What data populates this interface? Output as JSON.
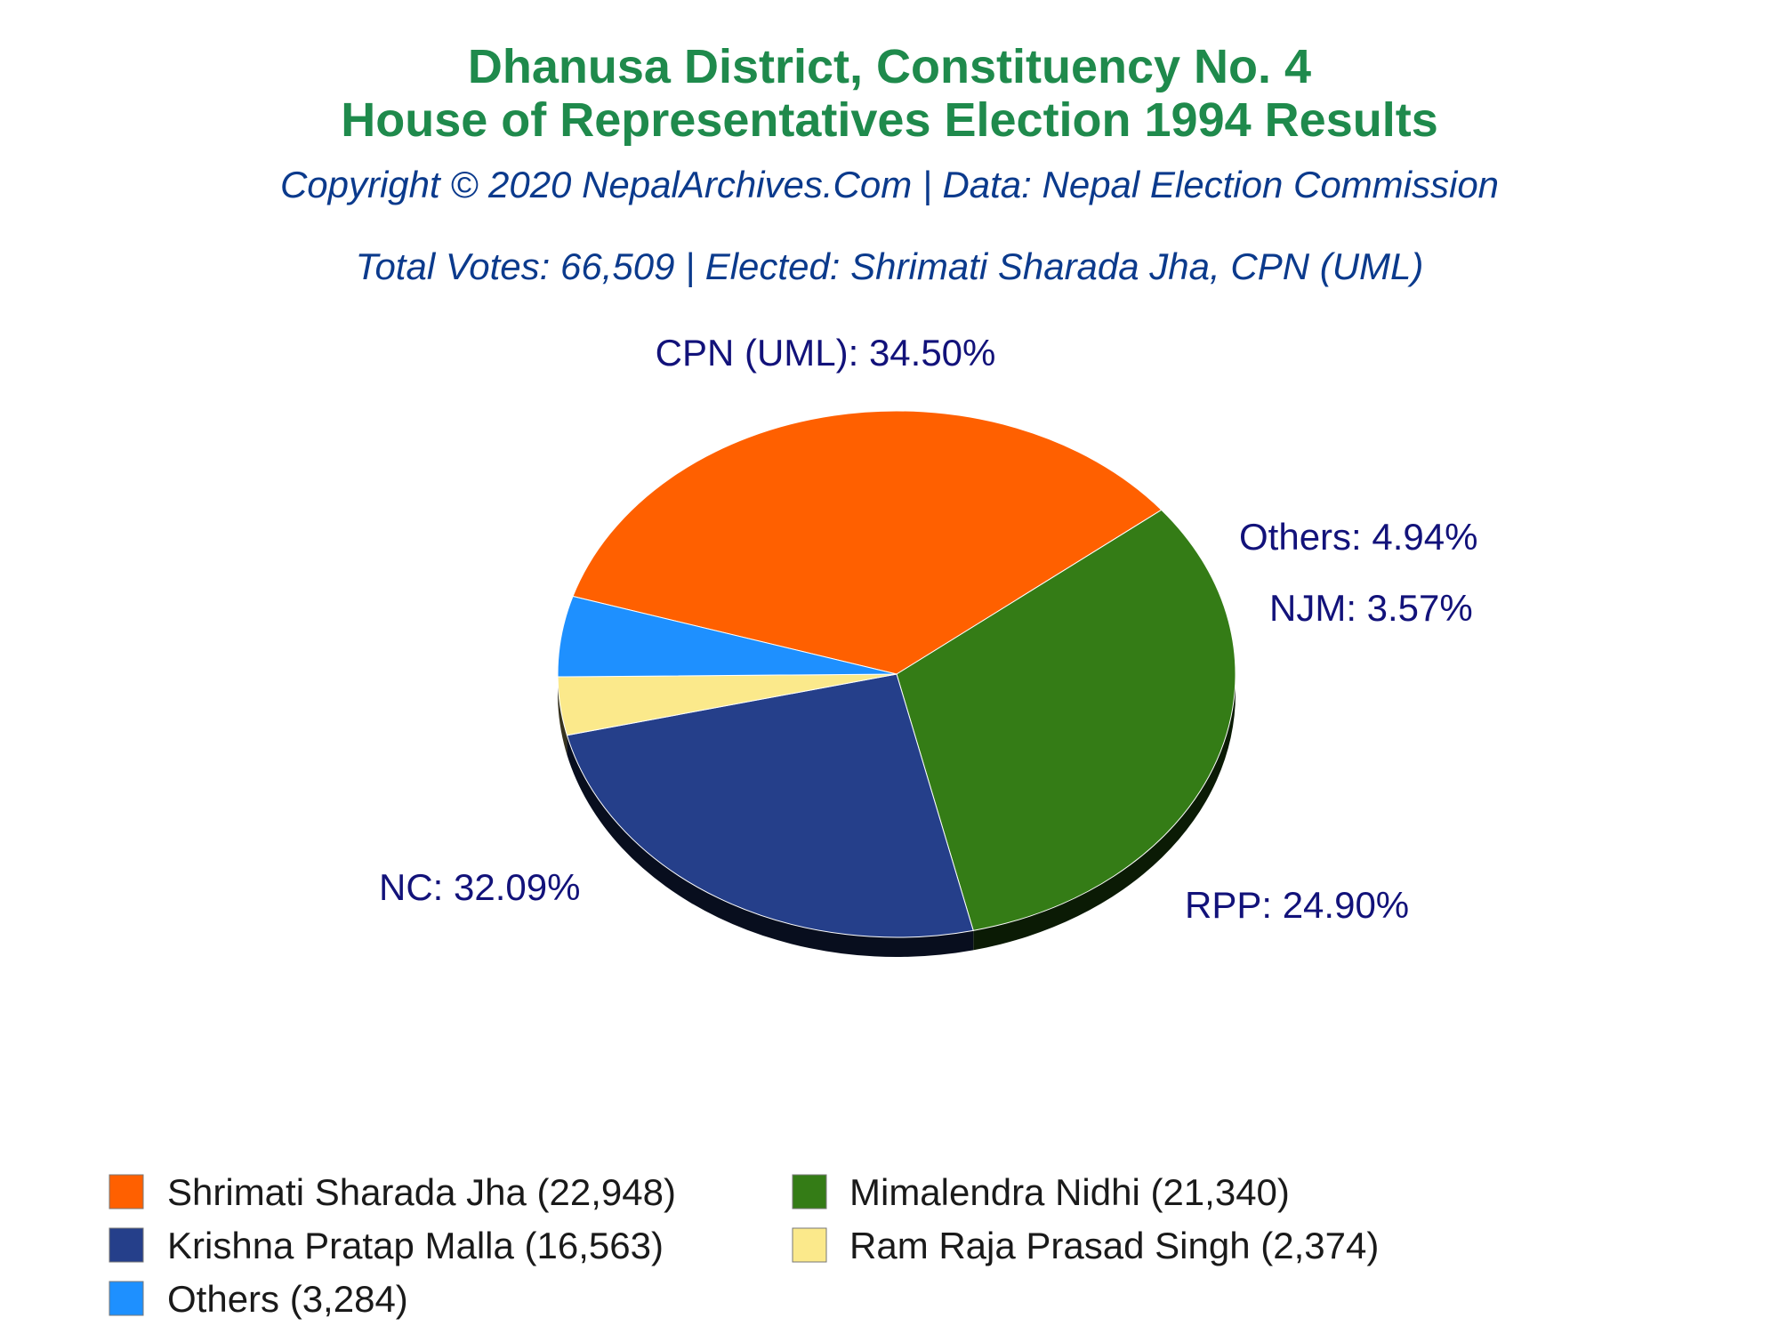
{
  "chart_data": {
    "type": "pie",
    "title": "Dhanusa District, Constituency No. 4",
    "subtitle": "House of Representatives Election 1994 Results",
    "copyright": "Copyright © 2020 NepalArchives.Com | Data: Nepal Election Commission",
    "summary": "Total Votes: 66,509 | Elected: Shrimati Sharada Jha, CPN (UML)",
    "slices": [
      {
        "party": "CPN (UML)",
        "label": "CPN (UML): 34.50%",
        "percent": 34.5,
        "color": "#ff6000"
      },
      {
        "party": "NC",
        "label": "NC: 32.09%",
        "percent": 32.09,
        "color": "#347c16"
      },
      {
        "party": "RPP",
        "label": "RPP: 24.90%",
        "percent": 24.9,
        "color": "#253f8a"
      },
      {
        "party": "NJM",
        "label": "NJM: 3.57%",
        "percent": 3.57,
        "color": "#fbe98b"
      },
      {
        "party": "Others",
        "label": "Others: 4.94%",
        "percent": 4.94,
        "color": "#1e90ff"
      }
    ],
    "legend": [
      {
        "text": "Shrimati Sharada Jha (22,948)",
        "votes": 22948,
        "color": "#ff6000"
      },
      {
        "text": "Mimalendra Nidhi (21,340)",
        "votes": 21340,
        "color": "#347c16"
      },
      {
        "text": "Krishna Pratap Malla (16,563)",
        "votes": 16563,
        "color": "#253f8a"
      },
      {
        "text": "Ram Raja Prasad Singh (2,374)",
        "votes": 2374,
        "color": "#fbe98b"
      },
      {
        "text": "Others (3,284)",
        "votes": 3284,
        "color": "#1e90ff"
      }
    ],
    "legend_placement": "bottom"
  }
}
